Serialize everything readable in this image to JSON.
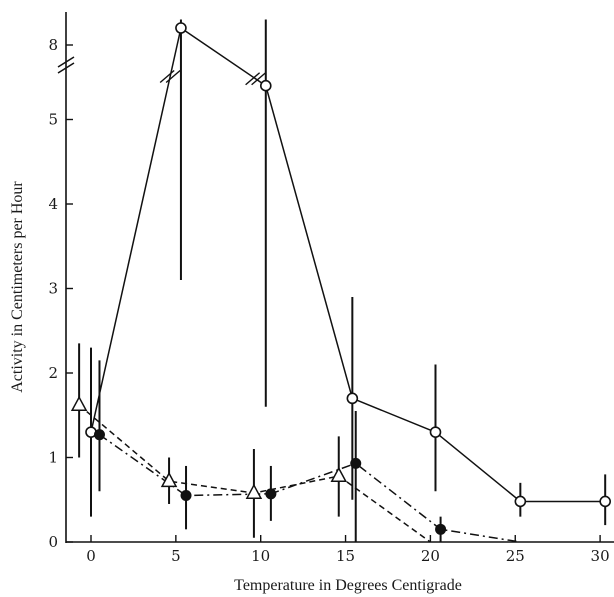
{
  "chart_data": {
    "type": "line",
    "xlabel": "Temperature in Degrees Centigrade",
    "ylabel": "Activity in Centimeters per Hour",
    "xlim": [
      -1.5,
      30.5
    ],
    "ylim": [
      0,
      8.4
    ],
    "x_ticks": [
      0,
      5,
      10,
      15,
      20,
      25,
      30
    ],
    "x_tick_labels": [
      "0",
      "5",
      "10",
      "15",
      "20",
      "25",
      "30"
    ],
    "y_ticks": [
      0,
      1,
      2,
      3,
      4,
      5,
      8
    ],
    "y_tick_labels": [
      "0",
      "1",
      "2",
      "3",
      "4",
      "5",
      "8"
    ],
    "y_axis_break": [
      5.6,
      7.8
    ],
    "grid": false,
    "series": [
      {
        "marker": "open-circle",
        "line_style": "solid",
        "points": [
          {
            "x": 0,
            "y": 1.3,
            "err_low": 0.3,
            "err_high": 2.3
          },
          {
            "x": 5.3,
            "y": 8.2,
            "err_low": 3.1,
            "err_high": 8.3
          },
          {
            "x": 10.3,
            "y": 5.4,
            "err_low": 1.6,
            "err_high": 8.3
          },
          {
            "x": 15.4,
            "y": 1.7,
            "err_low": 0.5,
            "err_high": 2.9
          },
          {
            "x": 20.3,
            "y": 1.3,
            "err_low": 0.6,
            "err_high": 2.1
          },
          {
            "x": 25.3,
            "y": 0.48,
            "err_low": 0.3,
            "err_high": 0.7
          },
          {
            "x": 30.3,
            "y": 0.48,
            "err_low": 0.2,
            "err_high": 0.8
          }
        ]
      },
      {
        "marker": "filled-circle",
        "line_style": "dash-dot",
        "points": [
          {
            "x": 0.5,
            "y": 1.27,
            "err_low": 0.6,
            "err_high": 2.15
          },
          {
            "x": 5.6,
            "y": 0.55,
            "err_low": 0.15,
            "err_high": 0.9
          },
          {
            "x": 10.6,
            "y": 0.57,
            "err_low": 0.25,
            "err_high": 0.9
          },
          {
            "x": 15.6,
            "y": 0.93,
            "err_low": 0.0,
            "err_high": 1.55
          },
          {
            "x": 20.6,
            "y": 0.15,
            "err_low": 0.0,
            "err_high": 0.3
          },
          {
            "x": 25.3,
            "y": 0.0
          }
        ]
      },
      {
        "marker": "open-triangle",
        "line_style": "dashed",
        "points": [
          {
            "x": -0.7,
            "y": 1.62,
            "err_low": 1.0,
            "err_high": 2.35
          },
          {
            "x": 4.6,
            "y": 0.72,
            "err_low": 0.45,
            "err_high": 1.0
          },
          {
            "x": 9.6,
            "y": 0.58,
            "err_low": 0.05,
            "err_high": 1.1
          },
          {
            "x": 14.6,
            "y": 0.78,
            "err_low": 0.3,
            "err_high": 1.25
          },
          {
            "x": 20.0,
            "y": 0.0
          }
        ]
      }
    ]
  }
}
